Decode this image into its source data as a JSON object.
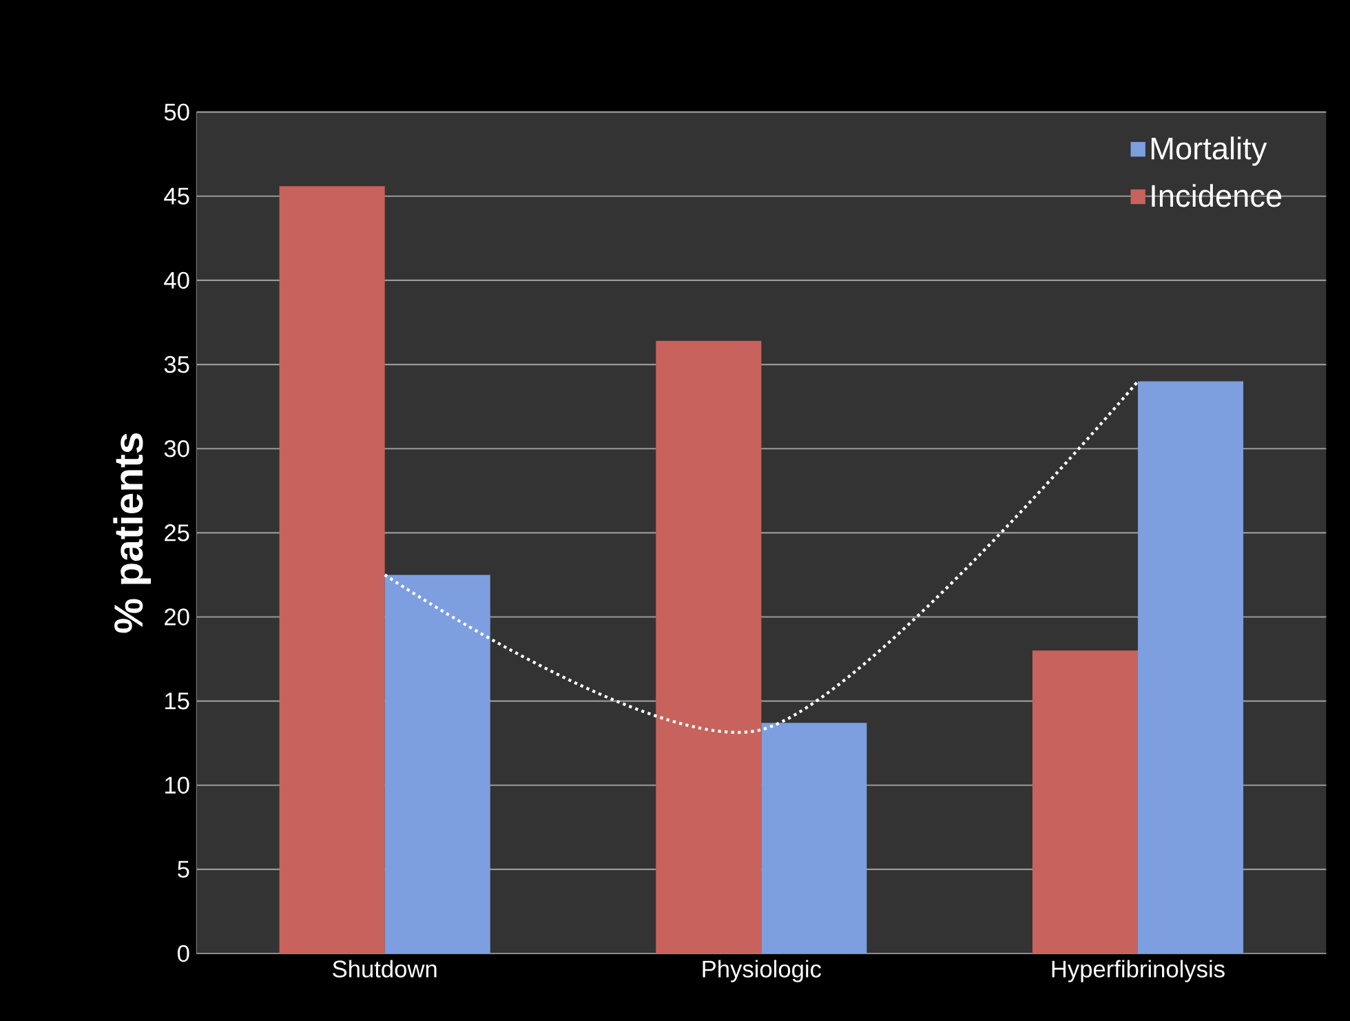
{
  "chart_data": {
    "type": "bar",
    "ylabel": "% patients",
    "categories": [
      "Shutdown",
      "Physiologic",
      "Hyperfibrinolysis"
    ],
    "series": [
      {
        "name": "Incidence",
        "color": "#c8625c",
        "values": [
          45.6,
          36.4,
          18
        ]
      },
      {
        "name": "Mortality",
        "color": "#7d9fe0",
        "values": [
          22.5,
          13.7,
          34
        ]
      },
      {
        "type": "line",
        "color": "#ffffff",
        "line_style": "dotted",
        "values": [
          22.5,
          13.3,
          34
        ]
      }
    ],
    "ylim": [
      0,
      50
    ],
    "yticks": [
      0,
      5,
      10,
      15,
      20,
      25,
      30,
      35,
      40,
      45,
      50
    ],
    "grid": "y",
    "legend": "top right"
  }
}
